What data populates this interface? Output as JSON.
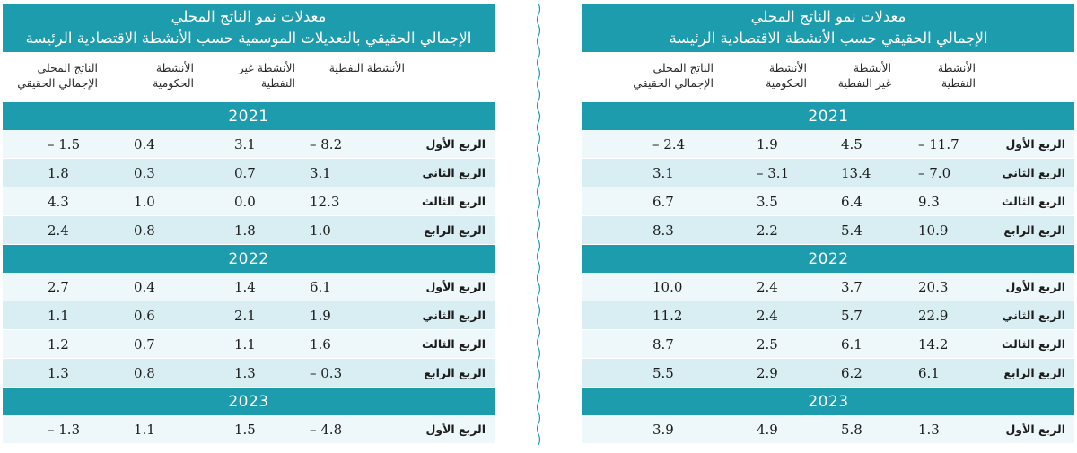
{
  "left": {
    "title_line1": "معدلات نمو الناتج المحلي",
    "title_line2": "الإجمالي الحقيقي بالتعديلات الموسمية حسب الأنشطة الاقتصادية الرئيسة",
    "headers": [
      [
        "الأنشطة النفطية"
      ],
      [
        "الأنشطة غير",
        "النفطية"
      ],
      [
        "الأنشطة",
        "الحكومية"
      ],
      [
        "الناتج المحلي",
        "الإجمالي الحقيقي"
      ]
    ],
    "years": [
      {
        "year": "2021",
        "rows": [
          {
            "label": "الربع الأول",
            "values": [
              "– 8.2",
              "3.1",
              "0.4",
              "– 1.5"
            ]
          },
          {
            "label": "الربع الثاني",
            "values": [
              "3.1",
              "0.7",
              "0.3",
              "1.8"
            ]
          },
          {
            "label": "الربع الثالث",
            "values": [
              "12.3",
              "0.0",
              "1.0",
              "4.3"
            ]
          },
          {
            "label": "الربع الرابع",
            "values": [
              "1.0",
              "1.8",
              "0.8",
              "2.4"
            ]
          }
        ]
      },
      {
        "year": "2022",
        "rows": [
          {
            "label": "الربع الأول",
            "values": [
              "6.1",
              "1.4",
              "0.4",
              "2.7"
            ]
          },
          {
            "label": "الربع الثاني",
            "values": [
              "1.9",
              "2.1",
              "0.6",
              "1.1"
            ]
          },
          {
            "label": "الربع الثالث",
            "values": [
              "1.6",
              "1.1",
              "0.7",
              "1.2"
            ]
          },
          {
            "label": "الربع الرابع",
            "values": [
              "– 0.3",
              "1.3",
              "0.8",
              "1.3"
            ]
          }
        ]
      },
      {
        "year": "2023",
        "rows": [
          {
            "label": "الربع الأول",
            "values": [
              "– 4.8",
              "1.5",
              "1.1",
              "– 1.3"
            ]
          }
        ]
      }
    ]
  },
  "right": {
    "title_line1": "معدلات نمو الناتج المحلي",
    "title_line2": "الإجمالي الحقيقي حسب الأنشطة الاقتصادية الرئيسة",
    "headers": [
      [
        "الأنشطة",
        "النفطية"
      ],
      [
        "الأنشطة",
        "غير النفطية"
      ],
      [
        "الأنشطة",
        "الحكومية"
      ],
      [
        "الناتج المحلي",
        "الإجمالي الحقيقي"
      ]
    ],
    "years": [
      {
        "year": "2021",
        "rows": [
          {
            "label": "الربع الأول",
            "values": [
              "– 11.7",
              "4.5",
              "1.9",
              "– 2.4"
            ]
          },
          {
            "label": "الربع الثاني",
            "values": [
              "– 7.0",
              "13.4",
              "– 3.1",
              "3.1"
            ]
          },
          {
            "label": "الربع الثالث",
            "values": [
              "9.3",
              "6.4",
              "3.5",
              "6.7"
            ]
          },
          {
            "label": "الربع الرابع",
            "values": [
              "10.9",
              "5.4",
              "2.2",
              "8.3"
            ]
          }
        ]
      },
      {
        "year": "2022",
        "rows": [
          {
            "label": "الربع الأول",
            "values": [
              "20.3",
              "3.7",
              "2.4",
              "10.0"
            ]
          },
          {
            "label": "الربع الثاني",
            "values": [
              "22.9",
              "5.7",
              "2.4",
              "11.2"
            ]
          },
          {
            "label": "الربع الثالث",
            "values": [
              "14.2",
              "6.1",
              "2.5",
              "8.7"
            ]
          },
          {
            "label": "الربع الرابع",
            "values": [
              "6.1",
              "6.2",
              "2.9",
              "5.5"
            ]
          }
        ]
      },
      {
        "year": "2023",
        "rows": [
          {
            "label": "الربع الأول",
            "values": [
              "1.3",
              "5.8",
              "4.9",
              "3.9"
            ]
          }
        ]
      }
    ]
  },
  "colors": {
    "accent": "#1d9cae",
    "row_light": "#eef7f9",
    "row_dark": "#d8eef2",
    "divider": "#1d9cae"
  }
}
